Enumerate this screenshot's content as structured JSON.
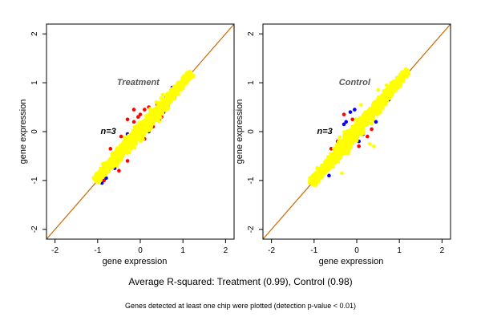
{
  "chart_data": [
    {
      "type": "scatter",
      "panel_label": "Treatment",
      "n_label": "n=3",
      "xlabel": "gene expression",
      "ylabel": "gene expression",
      "xlim": [
        -2.2,
        2.2
      ],
      "ylim": [
        -2.2,
        2.2
      ],
      "xticks": [
        -2,
        -1,
        0,
        1,
        2
      ],
      "yticks": [
        -2,
        -1,
        0,
        1,
        2
      ],
      "reference_line": {
        "slope": 1,
        "intercept": 0,
        "color": "#cc6600"
      },
      "cloud": {
        "from": [
          -1.05,
          -1.0
        ],
        "to": [
          1.2,
          1.2
        ],
        "color": "#ffff00"
      },
      "series_colors": [
        "#ff0000",
        "#0000ff",
        "#ffff00"
      ],
      "series": [
        {
          "color": "#ff0000",
          "points": [
            [
              -0.15,
              0.45
            ],
            [
              -0.05,
              0.3
            ],
            [
              0.1,
              0.45
            ],
            [
              -0.3,
              0.25
            ],
            [
              -0.15,
              0.2
            ],
            [
              0.0,
              0.35
            ],
            [
              0.2,
              0.5
            ],
            [
              -0.7,
              -0.35
            ],
            [
              -0.45,
              -0.1
            ],
            [
              -0.1,
              0.1
            ],
            [
              0.4,
              0.55
            ],
            [
              0.6,
              0.7
            ],
            [
              -0.5,
              -0.8
            ],
            [
              0.1,
              -0.15
            ],
            [
              -0.85,
              -1.0
            ],
            [
              -0.3,
              -0.6
            ],
            [
              0.3,
              0.1
            ],
            [
              0.5,
              0.3
            ]
          ]
        },
        {
          "color": "#0000ff",
          "points": [
            [
              0.45,
              0.25
            ],
            [
              0.55,
              0.4
            ],
            [
              0.65,
              0.55
            ],
            [
              0.8,
              0.7
            ],
            [
              -0.8,
              -0.95
            ],
            [
              -0.9,
              -1.05
            ],
            [
              0.2,
              0.0
            ],
            [
              -0.6,
              -0.75
            ],
            [
              0.75,
              0.9
            ],
            [
              0.9,
              1.0
            ],
            [
              -0.3,
              -0.05
            ]
          ]
        }
      ]
    },
    {
      "type": "scatter",
      "panel_label": "Control",
      "n_label": "n=3",
      "xlabel": "gene expression",
      "ylabel": "gene expression",
      "xlim": [
        -2.2,
        2.2
      ],
      "ylim": [
        -2.2,
        2.2
      ],
      "xticks": [
        -2,
        -1,
        0,
        1,
        2
      ],
      "yticks": [
        -2,
        -1,
        0,
        1,
        2
      ],
      "reference_line": {
        "slope": 1,
        "intercept": 0,
        "color": "#cc6600"
      },
      "cloud": {
        "from": [
          -1.05,
          -1.05
        ],
        "to": [
          1.2,
          1.25
        ],
        "color": "#ffff00"
      },
      "series_colors": [
        "#ff0000",
        "#0000ff",
        "#ffff00"
      ],
      "series": [
        {
          "color": "#ff0000",
          "points": [
            [
              -0.3,
              0.35
            ],
            [
              -0.1,
              0.25
            ],
            [
              0.1,
              0.15
            ],
            [
              0.3,
              0.35
            ],
            [
              0.5,
              0.45
            ],
            [
              -0.45,
              -0.2
            ],
            [
              0.25,
              -0.1
            ],
            [
              0.05,
              -0.3
            ],
            [
              -0.6,
              -0.35
            ],
            [
              0.35,
              0.05
            ],
            [
              0.6,
              0.6
            ],
            [
              -0.2,
              0.0
            ]
          ]
        },
        {
          "color": "#0000ff",
          "points": [
            [
              -0.15,
              0.4
            ],
            [
              -0.05,
              0.45
            ],
            [
              -0.3,
              0.15
            ],
            [
              -0.25,
              0.2
            ],
            [
              0.05,
              -0.2
            ],
            [
              -0.65,
              -0.9
            ],
            [
              -0.2,
              -0.35
            ],
            [
              0.15,
              -0.05
            ],
            [
              0.45,
              0.2
            ],
            [
              0.75,
              0.65
            ],
            [
              0.85,
              0.95
            ],
            [
              0.95,
              1.1
            ],
            [
              -0.8,
              -0.8
            ]
          ]
        },
        {
          "color": "#ffff00",
          "points": [
            [
              0.1,
              0.55
            ],
            [
              0.2,
              0.4
            ],
            [
              -0.35,
              -0.85
            ],
            [
              -0.5,
              -0.6
            ],
            [
              0.5,
              0.85
            ],
            [
              0.55,
              0.7
            ],
            [
              0.4,
              -0.3
            ],
            [
              0.3,
              -0.25
            ],
            [
              -0.2,
              -0.45
            ],
            [
              0.7,
              0.95
            ]
          ]
        }
      ]
    }
  ],
  "captions": {
    "main": "Average R-squared: Treatment (0.99), Control (0.98)",
    "sub": "Genes detected at least one chip were plotted (detection p-value < 0.01)"
  }
}
